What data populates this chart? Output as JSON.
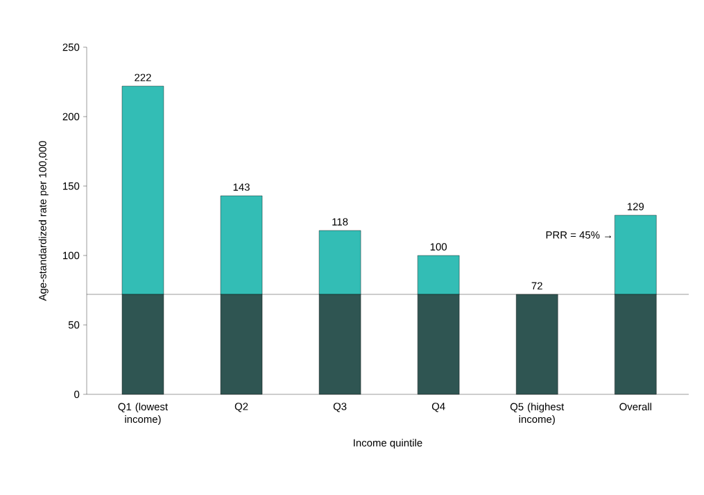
{
  "chart_data": {
    "type": "bar",
    "stacked": true,
    "xlabel": "Income quintile",
    "ylabel": "Age-standardized rate per 100,000",
    "categories": [
      "Q1 (lowest income)",
      "Q2",
      "Q3",
      "Q4",
      "Q5 (highest income)",
      "Overall"
    ],
    "series": [
      {
        "color": "#2f5552",
        "values": [
          72,
          72,
          72,
          72,
          72,
          72
        ]
      },
      {
        "color": "#33bdb5",
        "values": [
          150,
          71,
          46,
          28,
          0,
          57
        ]
      }
    ],
    "totals": [
      "222",
      "143",
      "118",
      "100",
      "72",
      "129"
    ],
    "ylim": [
      0,
      250
    ],
    "yticks": [
      0,
      50,
      100,
      150,
      200,
      250
    ],
    "ref_lines": [
      {
        "axis": "y",
        "value": 72
      }
    ],
    "annotations": [
      "PRR = 45% →"
    ],
    "grid": false
  }
}
